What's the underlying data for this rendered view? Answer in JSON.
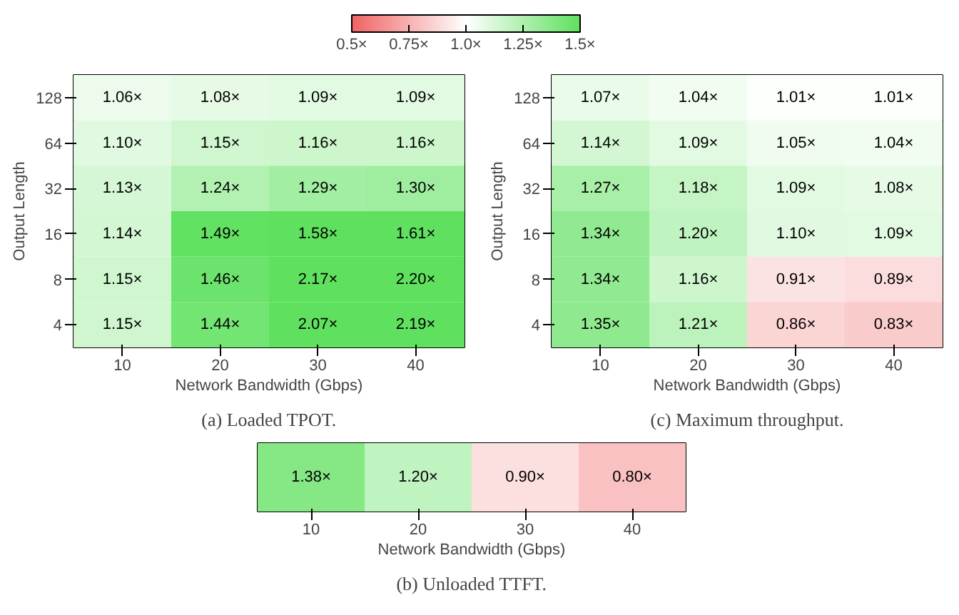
{
  "chart_data": [
    {
      "type": "heatmap",
      "title": "(a) Loaded TPOT.",
      "xlabel": "Network Bandwidth (Gbps)",
      "ylabel": "Output Length",
      "categories": [
        "10",
        "20",
        "30",
        "40"
      ],
      "y_categories": [
        "128",
        "64",
        "32",
        "16",
        "8",
        "4"
      ],
      "cells": [
        [
          1.06,
          1.08,
          1.09,
          1.09
        ],
        [
          1.1,
          1.15,
          1.16,
          1.16
        ],
        [
          1.13,
          1.24,
          1.29,
          1.3
        ],
        [
          1.14,
          1.49,
          1.58,
          1.61
        ],
        [
          1.15,
          1.46,
          2.17,
          2.2
        ],
        [
          1.15,
          1.44,
          2.07,
          2.19
        ]
      ],
      "cell_labels": [
        [
          "1.06×",
          "1.08×",
          "1.09×",
          "1.09×"
        ],
        [
          "1.10×",
          "1.15×",
          "1.16×",
          "1.16×"
        ],
        [
          "1.13×",
          "1.24×",
          "1.29×",
          "1.30×"
        ],
        [
          "1.14×",
          "1.49×",
          "1.58×",
          "1.61×"
        ],
        [
          "1.15×",
          "1.46×",
          "2.17×",
          "2.20×"
        ],
        [
          "1.15×",
          "1.44×",
          "2.07×",
          "2.19×"
        ]
      ],
      "clim": [
        0.5,
        1.5
      ],
      "cticks": [
        {
          "value": 0.5,
          "label": "0.5×"
        },
        {
          "value": 0.75,
          "label": "0.75×"
        },
        {
          "value": 1.0,
          "label": "1.0×"
        },
        {
          "value": 1.25,
          "label": "1.25×"
        },
        {
          "value": 1.5,
          "label": "1.5×"
        }
      ]
    },
    {
      "type": "heatmap",
      "title": "(c) Maximum throughput.",
      "xlabel": "Network Bandwidth (Gbps)",
      "ylabel": "Output Length",
      "categories": [
        "10",
        "20",
        "30",
        "40"
      ],
      "y_categories": [
        "128",
        "64",
        "32",
        "16",
        "8",
        "4"
      ],
      "cells": [
        [
          1.07,
          1.04,
          1.01,
          1.01
        ],
        [
          1.14,
          1.09,
          1.05,
          1.04
        ],
        [
          1.27,
          1.18,
          1.09,
          1.08
        ],
        [
          1.34,
          1.2,
          1.1,
          1.09
        ],
        [
          1.34,
          1.16,
          0.91,
          0.89
        ],
        [
          1.35,
          1.21,
          0.86,
          0.83
        ]
      ],
      "cell_labels": [
        [
          "1.07×",
          "1.04×",
          "1.01×",
          "1.01×"
        ],
        [
          "1.14×",
          "1.09×",
          "1.05×",
          "1.04×"
        ],
        [
          "1.27×",
          "1.18×",
          "1.09×",
          "1.08×"
        ],
        [
          "1.34×",
          "1.20×",
          "1.10×",
          "1.09×"
        ],
        [
          "1.34×",
          "1.16×",
          "0.91×",
          "0.89×"
        ],
        [
          "1.35×",
          "1.21×",
          "0.86×",
          "0.83×"
        ]
      ]
    },
    {
      "type": "heatmap",
      "title": "(b) Unloaded TTFT.",
      "xlabel": "Network Bandwidth (Gbps)",
      "categories": [
        "10",
        "20",
        "30",
        "40"
      ],
      "y_categories": [
        null
      ],
      "cells": [
        [
          1.38,
          1.2,
          0.9,
          0.8
        ]
      ],
      "cell_labels": [
        [
          "1.38×",
          "1.20×",
          "0.90×",
          "0.80×"
        ]
      ]
    }
  ]
}
